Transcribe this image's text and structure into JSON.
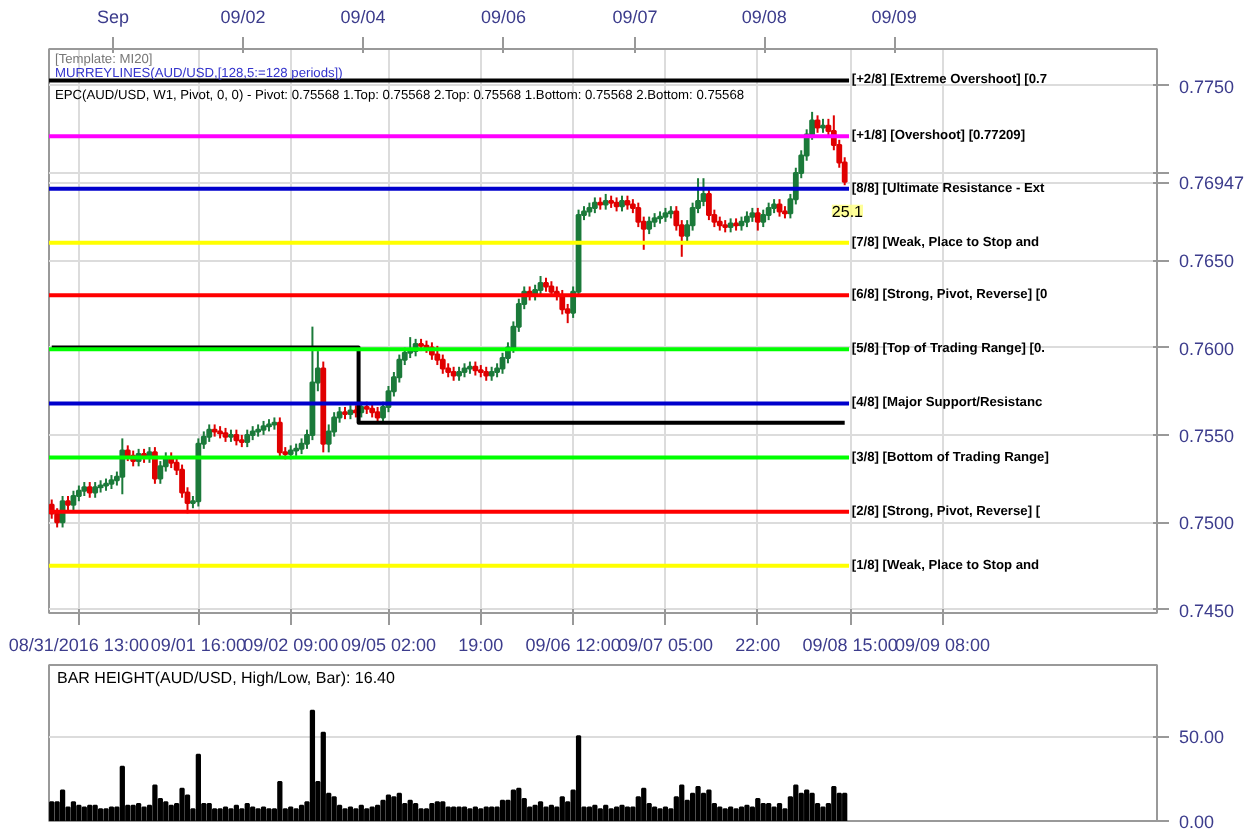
{
  "chart_data": [
    {
      "type": "candlestick",
      "annotations": [
        "[Template: MI20]",
        "MURREYLINES(AUD/USD,[128,5:=128 periods])",
        "EPC(AUD/USD, W1, Pivot, 0, 0) - Pivot: 0.75568  1.Top: 0.75568  2.Top: 0.75568  1.Bottom: 0.75568  2.Bottom: 0.75568",
        "Sep",
        "09/02",
        "09/04",
        "09/06",
        "09/07",
        "09/08",
        "09/09",
        "25.1"
      ],
      "categories": [
        null,
        null,
        null,
        null,
        null,
        "08/31/2016 13:00",
        null,
        null,
        null,
        null,
        null,
        null,
        null,
        null,
        null,
        null,
        null,
        null,
        null,
        null,
        null,
        null,
        null,
        null,
        null,
        null,
        null,
        "09/01 16:00",
        null,
        null,
        null,
        null,
        null,
        null,
        null,
        null,
        null,
        null,
        null,
        null,
        null,
        null,
        null,
        null,
        "09/02 09:00",
        null,
        null,
        null,
        null,
        null,
        null,
        null,
        null,
        null,
        null,
        null,
        null,
        null,
        null,
        null,
        null,
        null,
        "09/05 02:00",
        null,
        null,
        null,
        null,
        null,
        null,
        null,
        null,
        null,
        null,
        null,
        null,
        null,
        null,
        null,
        null,
        "19:00",
        null,
        null,
        null,
        null,
        null,
        null,
        null,
        null,
        null,
        null,
        null,
        null,
        null,
        null,
        null,
        null,
        "09/06 12:00",
        null,
        null,
        null,
        null,
        null,
        null,
        null,
        null,
        null,
        null,
        null,
        null,
        null,
        null,
        null,
        null,
        "09/07 05:00",
        null,
        null,
        null,
        null,
        null,
        null,
        null,
        null,
        null,
        null,
        null,
        null,
        null,
        null,
        null,
        null,
        "22:00",
        null,
        null,
        null,
        null,
        null,
        null,
        null,
        null,
        null,
        null,
        null,
        null,
        null,
        null,
        null,
        null,
        "09/08 15:00",
        null,
        null,
        null,
        null,
        null,
        null,
        null,
        null,
        null,
        null,
        null,
        null,
        null,
        null,
        null,
        null,
        "09/09 08:00",
        null,
        null,
        null,
        null,
        null,
        null,
        null,
        null,
        null,
        null,
        null,
        null,
        null,
        null,
        null,
        null,
        null,
        null,
        null,
        null,
        null,
        null,
        null,
        null,
        null,
        null,
        null,
        null,
        null,
        null,
        null,
        null,
        null,
        null,
        null,
        null,
        null,
        null,
        null
      ],
      "ohlc": [
        [
          0.751,
          0.7513,
          0.7502,
          0.7505
        ],
        [
          0.7505,
          0.7508,
          0.7497,
          0.75
        ],
        [
          0.75,
          0.7515,
          0.7497,
          0.7512
        ],
        [
          0.7512,
          0.7515,
          0.7507,
          0.751
        ],
        [
          0.751,
          0.7518,
          0.7507,
          0.7515
        ],
        [
          0.7515,
          0.7521,
          0.7512,
          0.7518
        ],
        [
          0.7518,
          0.7523,
          0.7515,
          0.752
        ],
        [
          0.752,
          0.7523,
          0.7514,
          0.7517
        ],
        [
          0.7517,
          0.7523,
          0.7514,
          0.752
        ],
        [
          0.752,
          0.7524,
          0.7517,
          0.7521
        ],
        [
          0.7521,
          0.7525,
          0.7518,
          0.7522
        ],
        [
          0.7522,
          0.7527,
          0.7519,
          0.7524
        ],
        [
          0.7524,
          0.7529,
          0.7521,
          0.7526
        ],
        [
          0.7526,
          0.7548,
          0.7516,
          0.7541
        ],
        [
          0.7541,
          0.7544,
          0.7535,
          0.7538
        ],
        [
          0.7538,
          0.7541,
          0.7532,
          0.7535
        ],
        [
          0.7535,
          0.7542,
          0.7532,
          0.7539
        ],
        [
          0.7539,
          0.7542,
          0.7534,
          0.7537
        ],
        [
          0.7537,
          0.7543,
          0.7534,
          0.754
        ],
        [
          0.754,
          0.7543,
          0.7522,
          0.7525
        ],
        [
          0.7525,
          0.7535,
          0.7522,
          0.7532
        ],
        [
          0.7532,
          0.754,
          0.7529,
          0.7537
        ],
        [
          0.7537,
          0.754,
          0.7531,
          0.7534
        ],
        [
          0.7534,
          0.7537,
          0.7527,
          0.753
        ],
        [
          0.753,
          0.7533,
          0.7514,
          0.7517
        ],
        [
          0.7517,
          0.752,
          0.7505,
          0.7511
        ],
        [
          0.7511,
          0.7515,
          0.7508,
          0.7512
        ],
        [
          0.7512,
          0.7548,
          0.7509,
          0.7545
        ],
        [
          0.7545,
          0.7552,
          0.7542,
          0.7549
        ],
        [
          0.7549,
          0.7556,
          0.7546,
          0.7553
        ],
        [
          0.7553,
          0.7556,
          0.7549,
          0.7552
        ],
        [
          0.7552,
          0.7555,
          0.7548,
          0.7551
        ],
        [
          0.7551,
          0.7554,
          0.7546,
          0.7549
        ],
        [
          0.7549,
          0.7553,
          0.7546,
          0.755
        ],
        [
          0.755,
          0.7553,
          0.7544,
          0.7547
        ],
        [
          0.7547,
          0.755,
          0.7543,
          0.7546
        ],
        [
          0.7546,
          0.7553,
          0.7543,
          0.755
        ],
        [
          0.755,
          0.7555,
          0.7547,
          0.7552
        ],
        [
          0.7552,
          0.7556,
          0.7549,
          0.7553
        ],
        [
          0.7553,
          0.7558,
          0.755,
          0.7555
        ],
        [
          0.7555,
          0.7559,
          0.7552,
          0.7556
        ],
        [
          0.7556,
          0.756,
          0.7553,
          0.7557
        ],
        [
          0.7557,
          0.756,
          0.7537,
          0.754
        ],
        [
          0.754,
          0.7543,
          0.7536,
          0.7539
        ],
        [
          0.7539,
          0.7544,
          0.7536,
          0.7541
        ],
        [
          0.7541,
          0.7545,
          0.7538,
          0.7542
        ],
        [
          0.7542,
          0.7548,
          0.7539,
          0.7545
        ],
        [
          0.7545,
          0.7553,
          0.7542,
          0.755
        ],
        [
          0.755,
          0.7612,
          0.7547,
          0.758
        ],
        [
          0.758,
          0.7598,
          0.7575,
          0.7588
        ],
        [
          0.7588,
          0.7592,
          0.754,
          0.7545
        ],
        [
          0.7545,
          0.7556,
          0.754,
          0.7552
        ],
        [
          0.7552,
          0.7563,
          0.7549,
          0.756
        ],
        [
          0.756,
          0.7566,
          0.7557,
          0.7563
        ],
        [
          0.7563,
          0.7566,
          0.7559,
          0.7562
        ],
        [
          0.7562,
          0.7567,
          0.7559,
          0.7564
        ],
        [
          0.7564,
          0.7567,
          0.756,
          0.7563
        ],
        [
          0.7563,
          0.7569,
          0.756,
          0.7566
        ],
        [
          0.7566,
          0.7569,
          0.7562,
          0.7565
        ],
        [
          0.7565,
          0.7568,
          0.756,
          0.7563
        ],
        [
          0.7563,
          0.7566,
          0.7557,
          0.756
        ],
        [
          0.756,
          0.7569,
          0.7557,
          0.7566
        ],
        [
          0.7566,
          0.7578,
          0.7563,
          0.7575
        ],
        [
          0.7575,
          0.7586,
          0.7572,
          0.7583
        ],
        [
          0.7583,
          0.7596,
          0.758,
          0.7593
        ],
        [
          0.7593,
          0.76,
          0.759,
          0.7597
        ],
        [
          0.7597,
          0.7606,
          0.7594,
          0.7598
        ],
        [
          0.7598,
          0.7605,
          0.7595,
          0.7602
        ],
        [
          0.7602,
          0.7605,
          0.7598,
          0.7601
        ],
        [
          0.7601,
          0.7604,
          0.7597,
          0.76
        ],
        [
          0.76,
          0.7603,
          0.7593,
          0.7596
        ],
        [
          0.7596,
          0.7601,
          0.759,
          0.7593
        ],
        [
          0.7593,
          0.7596,
          0.7585,
          0.7588
        ],
        [
          0.7588,
          0.7591,
          0.7583,
          0.7586
        ],
        [
          0.7586,
          0.7589,
          0.7581,
          0.7584
        ],
        [
          0.7584,
          0.7589,
          0.7581,
          0.7586
        ],
        [
          0.7586,
          0.7591,
          0.7583,
          0.7588
        ],
        [
          0.7588,
          0.7592,
          0.7585,
          0.7589
        ],
        [
          0.7589,
          0.7592,
          0.7584,
          0.7587
        ],
        [
          0.7587,
          0.759,
          0.7583,
          0.7586
        ],
        [
          0.7586,
          0.7589,
          0.7581,
          0.7584
        ],
        [
          0.7584,
          0.7589,
          0.7581,
          0.7586
        ],
        [
          0.7586,
          0.7591,
          0.7583,
          0.7588
        ],
        [
          0.7588,
          0.7597,
          0.7585,
          0.7594
        ],
        [
          0.7594,
          0.7603,
          0.7591,
          0.76
        ],
        [
          0.76,
          0.7615,
          0.7597,
          0.7612
        ],
        [
          0.7612,
          0.7628,
          0.7609,
          0.7625
        ],
        [
          0.7625,
          0.7635,
          0.7622,
          0.7632
        ],
        [
          0.7632,
          0.7635,
          0.7627,
          0.763
        ],
        [
          0.763,
          0.7636,
          0.7627,
          0.7633
        ],
        [
          0.7633,
          0.7641,
          0.763,
          0.7637
        ],
        [
          0.7637,
          0.764,
          0.7632,
          0.7635
        ],
        [
          0.7635,
          0.7638,
          0.7629,
          0.7632
        ],
        [
          0.7632,
          0.7635,
          0.7627,
          0.763
        ],
        [
          0.763,
          0.7633,
          0.7619,
          0.7622
        ],
        [
          0.7622,
          0.7625,
          0.7614,
          0.762
        ],
        [
          0.762,
          0.7635,
          0.7617,
          0.7632
        ],
        [
          0.7632,
          0.7679,
          0.7629,
          0.7676
        ],
        [
          0.7676,
          0.7681,
          0.7673,
          0.7678
        ],
        [
          0.7678,
          0.7683,
          0.7675,
          0.768
        ],
        [
          0.768,
          0.7686,
          0.7677,
          0.7683
        ],
        [
          0.7683,
          0.7686,
          0.7679,
          0.7682
        ],
        [
          0.7682,
          0.7688,
          0.7679,
          0.7684
        ],
        [
          0.7684,
          0.7687,
          0.768,
          0.7683
        ],
        [
          0.7683,
          0.7686,
          0.7678,
          0.7681
        ],
        [
          0.7681,
          0.7687,
          0.7678,
          0.7684
        ],
        [
          0.7684,
          0.7687,
          0.7679,
          0.7682
        ],
        [
          0.7682,
          0.7685,
          0.7677,
          0.768
        ],
        [
          0.768,
          0.7683,
          0.7669,
          0.7672
        ],
        [
          0.7672,
          0.7675,
          0.7656,
          0.7668
        ],
        [
          0.7668,
          0.7675,
          0.7665,
          0.7672
        ],
        [
          0.7672,
          0.7677,
          0.7669,
          0.7674
        ],
        [
          0.7674,
          0.7678,
          0.7671,
          0.7675
        ],
        [
          0.7675,
          0.768,
          0.7672,
          0.7677
        ],
        [
          0.7677,
          0.7681,
          0.7674,
          0.7678
        ],
        [
          0.7678,
          0.7681,
          0.7667,
          0.767
        ],
        [
          0.767,
          0.7673,
          0.7652,
          0.7664
        ],
        [
          0.7664,
          0.7673,
          0.7661,
          0.767
        ],
        [
          0.767,
          0.7683,
          0.7667,
          0.768
        ],
        [
          0.768,
          0.7697,
          0.7677,
          0.7684
        ],
        [
          0.7684,
          0.7697,
          0.7681,
          0.7688
        ],
        [
          0.7688,
          0.7691,
          0.7673,
          0.7676
        ],
        [
          0.7676,
          0.7679,
          0.7669,
          0.7672
        ],
        [
          0.7672,
          0.7675,
          0.7667,
          0.767
        ],
        [
          0.767,
          0.7673,
          0.7666,
          0.7669
        ],
        [
          0.7669,
          0.7674,
          0.7666,
          0.7671
        ],
        [
          0.7671,
          0.7674,
          0.7667,
          0.767
        ],
        [
          0.767,
          0.7675,
          0.7667,
          0.7672
        ],
        [
          0.7672,
          0.7678,
          0.7669,
          0.7675
        ],
        [
          0.7675,
          0.768,
          0.7672,
          0.7677
        ],
        [
          0.7677,
          0.768,
          0.7667,
          0.7672
        ],
        [
          0.7672,
          0.7679,
          0.7669,
          0.7676
        ],
        [
          0.7676,
          0.7683,
          0.7673,
          0.768
        ],
        [
          0.768,
          0.7685,
          0.7677,
          0.7682
        ],
        [
          0.7682,
          0.7685,
          0.7675,
          0.7678
        ],
        [
          0.7678,
          0.7681,
          0.7674,
          0.7677
        ],
        [
          0.7677,
          0.7688,
          0.7674,
          0.7685
        ],
        [
          0.7685,
          0.7703,
          0.7682,
          0.77
        ],
        [
          0.77,
          0.7713,
          0.7697,
          0.771
        ],
        [
          0.771,
          0.7725,
          0.7707,
          0.7722
        ],
        [
          0.7722,
          0.7735,
          0.7719,
          0.773
        ],
        [
          0.773,
          0.7733,
          0.7723,
          0.7726
        ],
        [
          0.7726,
          0.7731,
          0.7723,
          0.7727
        ],
        [
          0.7727,
          0.7731,
          0.7721,
          0.7724
        ],
        [
          0.7724,
          0.7733,
          0.7713,
          0.7716
        ],
        [
          0.7716,
          0.7719,
          0.7703,
          0.7706
        ],
        [
          0.7706,
          0.7709,
          0.7693,
          0.7695
        ],
        null,
        null,
        null,
        null,
        null,
        null,
        null,
        null,
        null,
        null,
        null,
        null,
        null,
        null,
        null,
        null,
        null,
        null,
        null,
        null,
        null,
        null,
        null,
        null,
        null,
        null,
        null,
        null,
        null,
        null,
        null,
        null,
        null,
        null,
        null,
        null,
        null,
        null,
        null,
        null,
        null,
        null,
        null,
        null,
        null,
        null,
        null,
        null,
        null,
        null,
        null,
        null,
        null,
        null,
        null,
        null,
        null
      ],
      "series": [
        {
          "type": "step",
          "color": "#000000",
          "values": [
            0.76,
            0.76,
            0.76,
            0.76,
            0.76,
            0.76,
            0.76,
            0.76,
            0.76,
            0.76,
            0.76,
            0.76,
            0.76,
            0.76,
            0.76,
            0.76,
            0.76,
            0.76,
            0.76,
            0.76,
            0.76,
            0.76,
            0.76,
            0.76,
            0.76,
            0.76,
            0.76,
            0.76,
            0.76,
            0.76,
            0.76,
            0.76,
            0.76,
            0.76,
            0.76,
            0.76,
            0.76,
            0.76,
            0.76,
            0.76,
            0.76,
            0.76,
            0.76,
            0.76,
            0.76,
            0.76,
            0.76,
            0.76,
            0.76,
            0.76,
            0.76,
            0.76,
            0.76,
            0.76,
            0.76,
            0.76,
            0.76,
            0.7557,
            0.7557,
            0.7557,
            0.7557,
            0.7557,
            0.7557,
            0.7557,
            0.7557,
            0.7557,
            0.7557,
            0.7557,
            0.7557,
            0.7557,
            0.7557,
            0.7557,
            0.7557,
            0.7557,
            0.7557,
            0.7557,
            0.7557,
            0.7557,
            0.7557,
            0.7557,
            0.7557,
            0.7557,
            0.7557,
            0.7557,
            0.7557,
            0.7557,
            0.7557,
            0.7557,
            0.7557,
            0.7557,
            0.7557,
            0.7557,
            0.7557,
            0.7557,
            0.7557,
            0.7557,
            0.7557,
            0.7557,
            0.7557,
            0.7557,
            0.7557,
            0.7557,
            0.7557,
            0.7557,
            0.7557,
            0.7557,
            0.7557,
            0.7557,
            0.7557,
            0.7557,
            0.7557,
            0.7557,
            0.7557,
            0.7557,
            0.7557,
            0.7557,
            0.7557,
            0.7557,
            0.7557,
            0.7557,
            0.7557,
            0.7557,
            0.7557,
            0.7557,
            0.7557,
            0.7557,
            0.7557,
            0.7557,
            0.7557,
            0.7557,
            0.7557,
            0.7557,
            0.7557,
            0.7557,
            0.7557,
            0.7557,
            0.7557,
            0.7557,
            0.7557,
            0.7557,
            0.7557,
            0.7557,
            0.7557,
            0.7557,
            0.7557,
            0.7557,
            0.7557,
            null,
            null,
            null,
            null,
            null,
            null,
            null,
            null,
            null,
            null,
            null,
            null,
            null,
            null,
            null,
            null,
            null,
            null,
            null,
            null,
            null,
            null,
            null,
            null,
            null,
            null,
            null,
            null,
            null,
            null,
            null,
            null,
            null,
            null,
            null,
            null,
            null,
            null,
            null,
            null,
            null,
            null,
            null,
            null,
            null,
            null,
            null,
            null,
            null,
            null,
            null,
            null,
            null,
            null,
            null,
            null,
            null
          ]
        }
      ],
      "ylim": [
        0.7448,
        0.7771
      ],
      "yticks": [
        {
          "value": 0.745,
          "label": "0.7450"
        },
        {
          "value": 0.75,
          "label": "0.7500"
        },
        {
          "value": 0.755,
          "label": "0.7550"
        },
        {
          "value": 0.76,
          "label": "0.7600"
        },
        {
          "value": 0.765,
          "label": "0.7650"
        },
        {
          "value": 0.77,
          "label": null
        },
        {
          "value": 0.76947,
          "label": "0.76947"
        },
        {
          "value": 0.775,
          "label": "0.7750"
        }
      ],
      "ref_lines": [
        {
          "axis": "y",
          "value": 0.7753,
          "label": "[+2/8] [Extreme Overshoot] [0.7",
          "color": "#000000"
        },
        {
          "axis": "y",
          "value": 0.7721,
          "label": "[+1/8] [Overshoot] [0.77209]",
          "color": "#ff00ff"
        },
        {
          "axis": "y",
          "value": 0.7691,
          "label": "[8/8] [Ultimate Resistance - Ext",
          "color": "#0000cc"
        },
        {
          "axis": "y",
          "value": 0.766,
          "label": "[7/8] [Weak, Place to Stop and",
          "color": "#ffff00"
        },
        {
          "axis": "y",
          "value": 0.763,
          "label": "[6/8] [Strong, Pivot, Reverse] [0",
          "color": "#ff0000"
        },
        {
          "axis": "y",
          "value": 0.7599,
          "label": "[5/8] [Top of Trading Range] [0.",
          "color": "#00ff00"
        },
        {
          "axis": "y",
          "value": 0.7568,
          "label": "[4/8] [Major Support/Resistanc",
          "color": "#0000cc"
        },
        {
          "axis": "y",
          "value": 0.7537,
          "label": "[3/8] [Bottom of Trading Range]",
          "color": "#00ff00"
        },
        {
          "axis": "y",
          "value": 0.7506,
          "label": "[2/8] [Strong, Pivot, Reverse] [",
          "color": "#ff0000"
        },
        {
          "axis": "y",
          "value": 0.7475,
          "label": "[1/8] [Weak, Place to Stop and",
          "color": "#ffff00"
        }
      ],
      "grid": true
    },
    {
      "type": "bar",
      "title": "BAR HEIGHT(AUD/USD, High/Low, Bar): 16.40",
      "color": "#000000",
      "categories": [
        null,
        null,
        null,
        null,
        null,
        null,
        null,
        null,
        null,
        null,
        null,
        null,
        null,
        null,
        null,
        null,
        null,
        null,
        null,
        null,
        null,
        null,
        null,
        null,
        null,
        null,
        null,
        null,
        null,
        null,
        null,
        null,
        null,
        null,
        null,
        null,
        null,
        null,
        null,
        null,
        null,
        null,
        null,
        null,
        null,
        null,
        null,
        null,
        null,
        null,
        null,
        null,
        null,
        null,
        null,
        null,
        null,
        null,
        null,
        null,
        null,
        null,
        null,
        null,
        null,
        null,
        null,
        null,
        null,
        null,
        null,
        null,
        null,
        null,
        null,
        null,
        null,
        null,
        null,
        null,
        null,
        null,
        null,
        null,
        null,
        null,
        null,
        null,
        null,
        null,
        null,
        null,
        null,
        null,
        null,
        null,
        null,
        null,
        null,
        null,
        null,
        null,
        null,
        null,
        null,
        null,
        null,
        null,
        null,
        null,
        null,
        null,
        null,
        null,
        null,
        null,
        null,
        null,
        null,
        null,
        null,
        null,
        null,
        null,
        null,
        null,
        null,
        null,
        null,
        null,
        null,
        null,
        null,
        null,
        null,
        null,
        null,
        null,
        null,
        null,
        null,
        null,
        null,
        null,
        null,
        null,
        null,
        null,
        null,
        null,
        null,
        null,
        null,
        null,
        null,
        null,
        null,
        null,
        null,
        null,
        null,
        null,
        null,
        null,
        null,
        null,
        null,
        null,
        null,
        null,
        null,
        null,
        null,
        null,
        null,
        null,
        null,
        null,
        null,
        null,
        null,
        null,
        null,
        null,
        null,
        null,
        null,
        null,
        null,
        null,
        null,
        null,
        null,
        null,
        null,
        null,
        null,
        null,
        null,
        null,
        null,
        null,
        null,
        null
      ],
      "values": [
        11,
        11,
        18,
        8,
        11,
        9,
        8,
        9,
        9,
        7,
        7,
        8,
        8,
        32,
        9,
        9,
        10,
        8,
        9,
        21,
        13,
        11,
        9,
        10,
        19,
        15,
        7,
        39,
        10,
        10,
        7,
        7,
        8,
        7,
        9,
        7,
        10,
        8,
        7,
        8,
        7,
        7,
        23,
        7,
        8,
        7,
        9,
        11,
        65,
        23,
        52,
        16,
        14,
        9,
        7,
        8,
        7,
        9,
        7,
        8,
        9,
        12,
        15,
        14,
        16,
        10,
        12,
        10,
        7,
        7,
        10,
        11,
        11,
        8,
        8,
        8,
        8,
        7,
        8,
        7,
        8,
        8,
        8,
        12,
        12,
        18,
        19,
        13,
        8,
        9,
        11,
        8,
        9,
        8,
        14,
        11,
        18,
        50,
        8,
        8,
        9,
        7,
        9,
        7,
        8,
        9,
        8,
        8,
        14,
        19,
        10,
        8,
        7,
        8,
        7,
        14,
        21,
        12,
        16,
        20,
        16,
        18,
        10,
        8,
        7,
        8,
        7,
        8,
        9,
        8,
        13,
        10,
        10,
        8,
        10,
        7,
        14,
        21,
        16,
        18,
        16,
        10,
        8,
        10,
        20,
        16,
        16,
        null,
        null,
        null,
        null,
        null,
        null,
        null,
        null,
        null,
        null,
        null,
        null,
        null,
        null,
        null,
        null,
        null,
        null,
        null,
        null,
        null,
        null,
        null,
        null,
        null,
        null,
        null,
        null,
        null,
        null,
        null,
        null,
        null,
        null,
        null,
        null,
        null,
        null,
        null,
        null,
        null,
        null,
        null,
        null,
        null,
        null,
        null,
        null,
        null,
        null,
        null,
        null,
        null,
        null,
        null,
        null,
        null
      ],
      "ylim": [
        0,
        92
      ],
      "yticks": [
        {
          "value": 0,
          "label": "0.00"
        },
        {
          "value": 50,
          "label": "50.00"
        }
      ],
      "tick_labels": "y",
      "grid": true
    }
  ]
}
